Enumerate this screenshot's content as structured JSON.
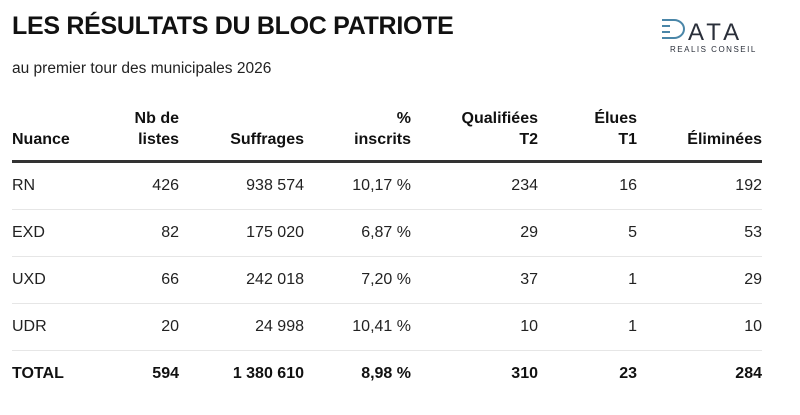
{
  "header": {
    "title": "LES RÉSULTATS DU BLOC PATRIOTE",
    "subtitle": "au premier tour des municipales 2026",
    "logo_text": "DATA",
    "logo_subtext": "REALIS CONSEIL",
    "logo_accent": "#4a86a8"
  },
  "table": {
    "columns": [
      {
        "line1": "",
        "line2": "Nuance"
      },
      {
        "line1": "Nb de",
        "line2": "listes"
      },
      {
        "line1": "",
        "line2": "Suffrages"
      },
      {
        "line1": "%",
        "line2": "inscrits"
      },
      {
        "line1": "Qualifiées",
        "line2": "T2"
      },
      {
        "line1": "Élues",
        "line2": "T1"
      },
      {
        "line1": "",
        "line2": "Éliminées"
      }
    ],
    "rows": [
      [
        "RN",
        "426",
        "938 574",
        "10,17 %",
        "234",
        "16",
        "192"
      ],
      [
        "EXD",
        "82",
        "175 020",
        "6,87 %",
        "29",
        "5",
        "53"
      ],
      [
        "UXD",
        "66",
        "242 018",
        "7,20 %",
        "37",
        "1",
        "29"
      ],
      [
        "UDR",
        "20",
        "24 998",
        "10,41 %",
        "10",
        "1",
        "10"
      ]
    ],
    "total": [
      "TOTAL",
      "594",
      "1 380 610",
      "8,98 %",
      "310",
      "23",
      "284"
    ]
  }
}
